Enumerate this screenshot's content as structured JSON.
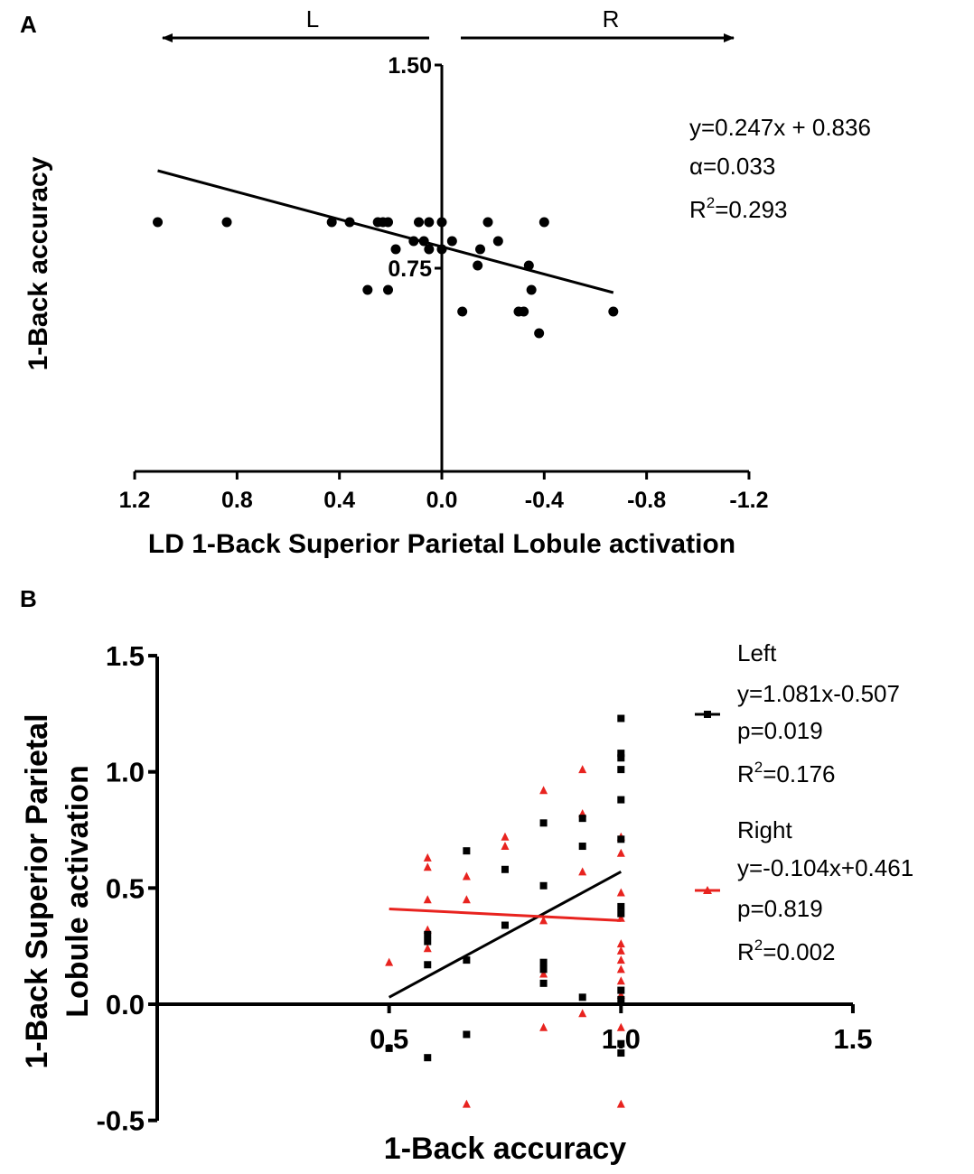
{
  "chart_data": [
    {
      "panel": "A",
      "type": "scatter",
      "direction_left": "L",
      "direction_right": "R",
      "xlabel": "LD 1-Back Superior Parietal Lobule activation",
      "ylabel": "1-Back accuracy",
      "x_reversed": true,
      "xlim": [
        1.2,
        -1.2
      ],
      "x_ticks": [
        1.2,
        0.8,
        0.4,
        0.0,
        -0.4,
        -0.8,
        -1.2
      ],
      "x_tick_labels": [
        "1.2",
        "0.8",
        "0.4",
        "0.0",
        "-0.4",
        "-0.8",
        "-1.2"
      ],
      "ylim": [
        0.0,
        1.5
      ],
      "y_ticks": [
        1.5,
        0.75
      ],
      "y_tick_labels": [
        "1.50",
        "0.75"
      ],
      "points": [
        {
          "x": 1.11,
          "y": 0.92
        },
        {
          "x": 0.84,
          "y": 0.92
        },
        {
          "x": 0.43,
          "y": 0.92
        },
        {
          "x": 0.36,
          "y": 0.92
        },
        {
          "x": 0.25,
          "y": 0.92
        },
        {
          "x": 0.23,
          "y": 0.92
        },
        {
          "x": 0.21,
          "y": 0.92
        },
        {
          "x": 0.09,
          "y": 0.92
        },
        {
          "x": 0.05,
          "y": 0.92
        },
        {
          "x": 0.0,
          "y": 0.92
        },
        {
          "x": -0.18,
          "y": 0.92
        },
        {
          "x": -0.4,
          "y": 0.92
        },
        {
          "x": 0.11,
          "y": 0.85
        },
        {
          "x": 0.07,
          "y": 0.85
        },
        {
          "x": -0.04,
          "y": 0.85
        },
        {
          "x": -0.22,
          "y": 0.85
        },
        {
          "x": 0.18,
          "y": 0.82
        },
        {
          "x": 0.05,
          "y": 0.82
        },
        {
          "x": 0.0,
          "y": 0.82
        },
        {
          "x": -0.15,
          "y": 0.82
        },
        {
          "x": -0.14,
          "y": 0.76
        },
        {
          "x": -0.34,
          "y": 0.76
        },
        {
          "x": 0.29,
          "y": 0.67
        },
        {
          "x": 0.21,
          "y": 0.67
        },
        {
          "x": -0.35,
          "y": 0.67
        },
        {
          "x": -0.08,
          "y": 0.59
        },
        {
          "x": -0.3,
          "y": 0.59
        },
        {
          "x": -0.32,
          "y": 0.59
        },
        {
          "x": -0.67,
          "y": 0.59
        },
        {
          "x": -0.38,
          "y": 0.51
        }
      ],
      "fit_line": {
        "x": [
          1.11,
          -0.67
        ],
        "y": [
          1.11,
          0.66
        ]
      },
      "annotation": {
        "equation": "y=0.247x + 0.836",
        "alpha": "α=0.033",
        "r2_prefix": "R",
        "r2_sup": "2",
        "r2_value": "=0.293"
      }
    },
    {
      "panel": "B",
      "type": "scatter",
      "xlabel": "1-Back accuracy",
      "ylabel_line1": "1-Back Superior Parietal",
      "ylabel_line2": "Lobule activation",
      "xlim": [
        0.0,
        1.5
      ],
      "x_ticks": [
        0.5,
        1.0,
        1.5
      ],
      "x_tick_labels": [
        "0.5",
        "1.0",
        "1.5"
      ],
      "ylim": [
        -0.5,
        1.5
      ],
      "y_ticks": [
        1.5,
        1.0,
        0.5,
        0.0,
        -0.5
      ],
      "y_tick_labels": [
        "1.5",
        "1.0",
        "0.5",
        "0.0",
        "-0.5"
      ],
      "series": [
        {
          "name": "Left",
          "color": "#000000",
          "marker": "square",
          "equation": "y=1.081x-0.507",
          "p": "p=0.019",
          "r2_prefix": "R",
          "r2_sup": "2",
          "r2_value": "=0.176",
          "points": [
            {
              "x": 0.5,
              "y": -0.19
            },
            {
              "x": 0.583,
              "y": -0.23
            },
            {
              "x": 0.583,
              "y": 0.17
            },
            {
              "x": 0.583,
              "y": 0.27
            },
            {
              "x": 0.583,
              "y": 0.3
            },
            {
              "x": 0.667,
              "y": 0.66
            },
            {
              "x": 0.667,
              "y": 0.19
            },
            {
              "x": 0.667,
              "y": -0.13
            },
            {
              "x": 0.75,
              "y": 0.58
            },
            {
              "x": 0.75,
              "y": 0.34
            },
            {
              "x": 0.833,
              "y": 0.78
            },
            {
              "x": 0.833,
              "y": 0.51
            },
            {
              "x": 0.833,
              "y": 0.18
            },
            {
              "x": 0.833,
              "y": 0.15
            },
            {
              "x": 0.833,
              "y": 0.09
            },
            {
              "x": 0.917,
              "y": 0.8
            },
            {
              "x": 0.917,
              "y": 0.68
            },
            {
              "x": 0.917,
              "y": 0.03
            },
            {
              "x": 1.0,
              "y": 1.23
            },
            {
              "x": 1.0,
              "y": 1.08
            },
            {
              "x": 1.0,
              "y": 1.06
            },
            {
              "x": 1.0,
              "y": 1.01
            },
            {
              "x": 1.0,
              "y": 0.88
            },
            {
              "x": 1.0,
              "y": 0.71
            },
            {
              "x": 1.0,
              "y": 0.42
            },
            {
              "x": 1.0,
              "y": 0.39
            },
            {
              "x": 1.0,
              "y": 0.06
            },
            {
              "x": 1.0,
              "y": 0.02
            },
            {
              "x": 1.0,
              "y": -0.17
            },
            {
              "x": 1.0,
              "y": -0.21
            }
          ],
          "fit_line": {
            "x": [
              0.5,
              1.0
            ],
            "y": [
              0.03,
              0.57
            ]
          }
        },
        {
          "name": "Right",
          "color": "#e8231f",
          "marker": "triangle",
          "equation": "y=-0.104x+0.461",
          "p": "p=0.819",
          "r2_prefix": "R",
          "r2_sup": "2",
          "r2_value": "=0.002",
          "points": [
            {
              "x": 0.5,
              "y": 0.18
            },
            {
              "x": 0.583,
              "y": 0.63
            },
            {
              "x": 0.583,
              "y": 0.59
            },
            {
              "x": 0.583,
              "y": 0.45
            },
            {
              "x": 0.583,
              "y": 0.32
            },
            {
              "x": 0.583,
              "y": 0.24
            },
            {
              "x": 0.667,
              "y": 0.55
            },
            {
              "x": 0.667,
              "y": 0.45
            },
            {
              "x": 0.667,
              "y": -0.43
            },
            {
              "x": 0.75,
              "y": 0.72
            },
            {
              "x": 0.75,
              "y": 0.68
            },
            {
              "x": 0.833,
              "y": 0.92
            },
            {
              "x": 0.833,
              "y": 0.36
            },
            {
              "x": 0.833,
              "y": 0.13
            },
            {
              "x": 0.833,
              "y": -0.1
            },
            {
              "x": 0.917,
              "y": 1.01
            },
            {
              "x": 0.917,
              "y": 0.82
            },
            {
              "x": 0.917,
              "y": 0.57
            },
            {
              "x": 0.917,
              "y": -0.04
            },
            {
              "x": 1.0,
              "y": 0.72
            },
            {
              "x": 1.0,
              "y": 0.65
            },
            {
              "x": 1.0,
              "y": 0.48
            },
            {
              "x": 1.0,
              "y": 0.37
            },
            {
              "x": 1.0,
              "y": 0.26
            },
            {
              "x": 1.0,
              "y": 0.23
            },
            {
              "x": 1.0,
              "y": 0.19
            },
            {
              "x": 1.0,
              "y": 0.15
            },
            {
              "x": 1.0,
              "y": 0.1
            },
            {
              "x": 1.0,
              "y": 0.04
            },
            {
              "x": 1.0,
              "y": -0.1
            },
            {
              "x": 1.0,
              "y": -0.43
            }
          ],
          "fit_line": {
            "x": [
              0.5,
              1.0
            ],
            "y": [
              0.41,
              0.36
            ]
          }
        }
      ]
    }
  ]
}
